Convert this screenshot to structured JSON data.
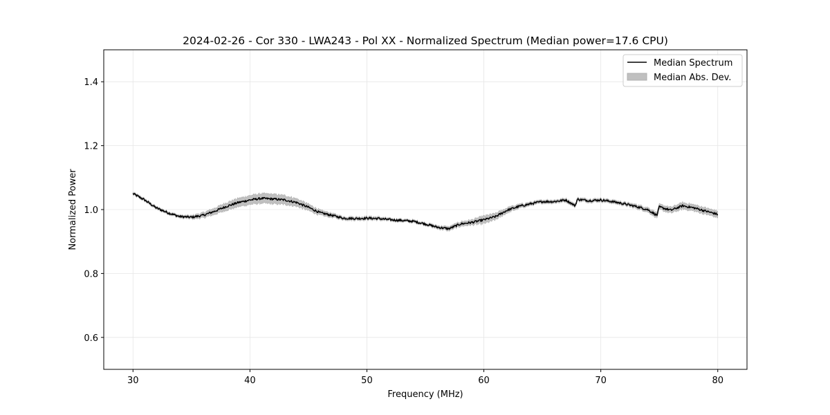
{
  "chart_data": {
    "type": "line",
    "title": "2024-02-26 - Cor 330 - LWA243 - Pol XX - Normalized Spectrum (Median power=17.6 CPU)",
    "xlabel": "Frequency (MHz)",
    "ylabel": "Normalized Power",
    "xlim": [
      27.5,
      82.5
    ],
    "ylim": [
      0.5,
      1.5
    ],
    "xticks": [
      30,
      40,
      50,
      60,
      70,
      80
    ],
    "yticks": [
      0.6,
      0.8,
      1.0,
      1.2,
      1.4
    ],
    "xtick_labels": [
      "30",
      "40",
      "50",
      "60",
      "70",
      "80"
    ],
    "ytick_labels": [
      "0.6",
      "0.8",
      "1.0",
      "1.2",
      "1.4"
    ],
    "grid": true,
    "legend_position": "top-right",
    "legend": [
      "Median Spectrum",
      "Median Abs. Dev."
    ],
    "colors": {
      "line": "#000000",
      "band": "#c0c0c0",
      "grid": "#e6e6e6"
    },
    "series": [
      {
        "name": "Median Spectrum",
        "kind": "line",
        "x": [
          30,
          31,
          32,
          33,
          34,
          35,
          36,
          37,
          38,
          39,
          40,
          41,
          42,
          43,
          44,
          45,
          46,
          47,
          48,
          49,
          50,
          51,
          52,
          53,
          54,
          55,
          56,
          57,
          58,
          59,
          60,
          61,
          62,
          63,
          64,
          65,
          66,
          67,
          67.8,
          68,
          69,
          70,
          71,
          72,
          73,
          74,
          74.8,
          75,
          76,
          77,
          78,
          79,
          80
        ],
        "y": [
          1.05,
          1.03,
          1.005,
          0.99,
          0.978,
          0.976,
          0.982,
          0.995,
          1.01,
          1.022,
          1.03,
          1.035,
          1.033,
          1.03,
          1.022,
          1.007,
          0.99,
          0.982,
          0.973,
          0.972,
          0.973,
          0.972,
          0.968,
          0.966,
          0.963,
          0.955,
          0.945,
          0.94,
          0.955,
          0.96,
          0.968,
          0.978,
          0.998,
          1.01,
          1.018,
          1.025,
          1.025,
          1.03,
          1.012,
          1.032,
          1.028,
          1.03,
          1.025,
          1.018,
          1.01,
          1.0,
          0.982,
          1.008,
          0.998,
          1.012,
          1.005,
          0.995,
          0.985
        ]
      },
      {
        "name": "Median Abs. Dev.",
        "kind": "band",
        "halfwidth": [
          0.004,
          0.004,
          0.004,
          0.004,
          0.004,
          0.005,
          0.008,
          0.01,
          0.012,
          0.013,
          0.014,
          0.015,
          0.015,
          0.014,
          0.012,
          0.01,
          0.008,
          0.006,
          0.005,
          0.005,
          0.005,
          0.005,
          0.004,
          0.004,
          0.004,
          0.004,
          0.005,
          0.006,
          0.007,
          0.008,
          0.012,
          0.01,
          0.008,
          0.006,
          0.005,
          0.005,
          0.005,
          0.005,
          0.005,
          0.005,
          0.005,
          0.005,
          0.005,
          0.005,
          0.006,
          0.007,
          0.008,
          0.008,
          0.009,
          0.01,
          0.01,
          0.01,
          0.01
        ]
      }
    ]
  }
}
